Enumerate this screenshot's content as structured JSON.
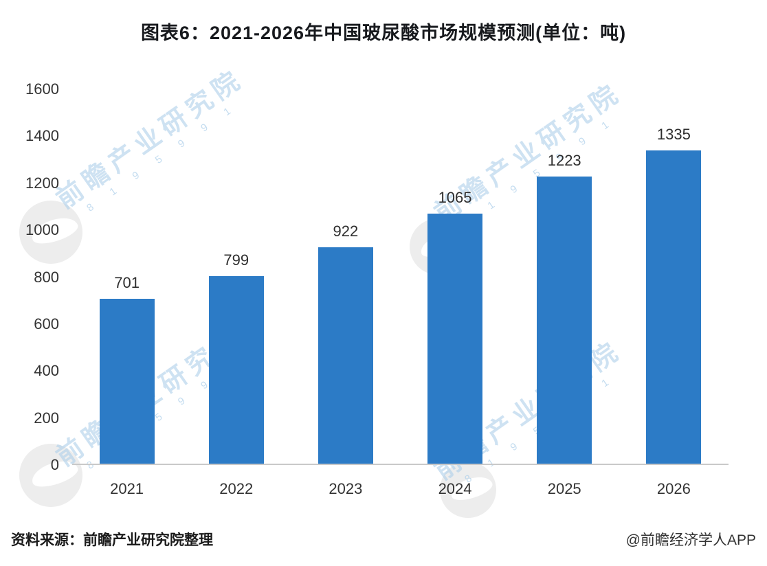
{
  "title": "图表6：2021-2026年中国玻尿酸市场规模预测(单位：吨)",
  "footer": {
    "source": "资料来源：前瞻产业研究院整理",
    "credit": "@前瞻经济学人APP"
  },
  "watermark": {
    "text": "前瞻产业研究院",
    "digits": "8 1 9 5 9 9 1"
  },
  "chart_data": {
    "type": "bar",
    "categories": [
      "2021",
      "2022",
      "2023",
      "2024",
      "2025",
      "2026"
    ],
    "values": [
      701,
      799,
      922,
      1065,
      1223,
      1335
    ],
    "title": "图表6：2021-2026年中国玻尿酸市场规模预测(单位：吨)",
    "xlabel": "",
    "ylabel": "",
    "ylim": [
      0,
      1600
    ],
    "yticks": [
      0,
      200,
      400,
      600,
      800,
      1000,
      1200,
      1400,
      1600
    ],
    "bar_color": "#2c7bc6",
    "grid": false,
    "legend": false,
    "value_labels": true
  }
}
